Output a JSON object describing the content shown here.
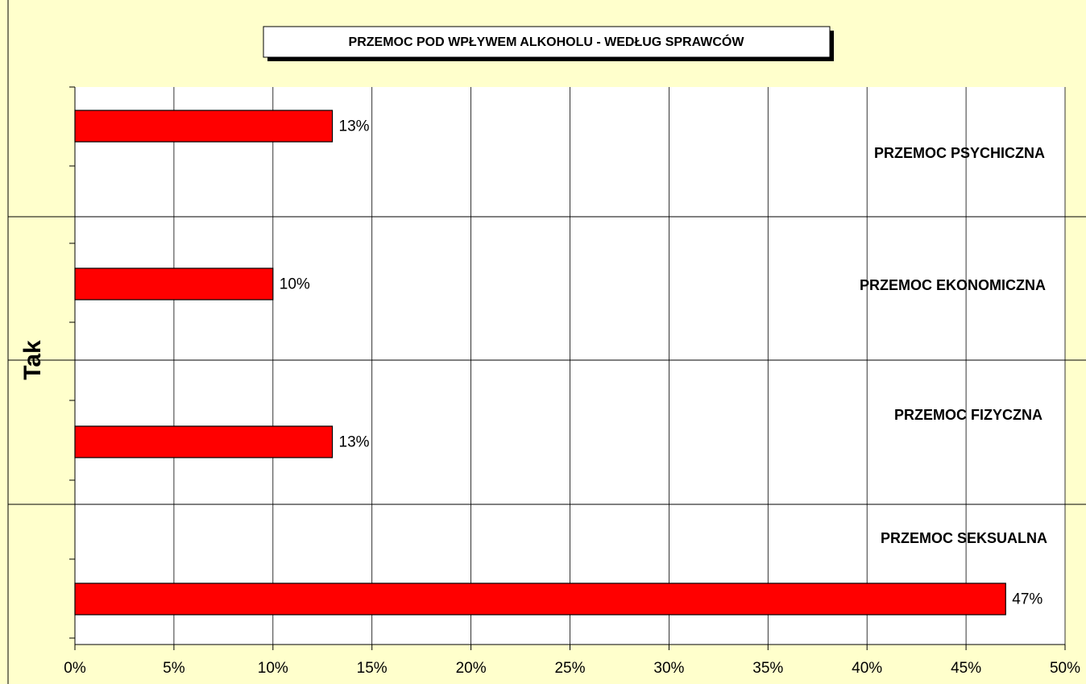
{
  "chart_data": {
    "type": "bar",
    "orientation": "horizontal",
    "title": "PRZEMOC POD WPŁYWEM ALKOHOLU - WEDŁUG SPRAWCÓW",
    "y_label": "Tak",
    "categories": [
      "PRZEMOC PSYCHICZNA",
      "PRZEMOC EKONOMICZNA",
      "PRZEMOC FIZYCZNA",
      "PRZEMOC SEKSUALNA"
    ],
    "values": [
      13,
      10,
      13,
      47
    ],
    "value_labels": [
      "13%",
      "10%",
      "13%",
      "47%"
    ],
    "color": "#ff0000",
    "xlim": [
      0,
      50
    ],
    "xticks": [
      {
        "value": 0,
        "label": "0%"
      },
      {
        "value": 5,
        "label": "5%"
      },
      {
        "value": 10,
        "label": "10%"
      },
      {
        "value": 15,
        "label": "15%"
      },
      {
        "value": 20,
        "label": "20%"
      },
      {
        "value": 25,
        "label": "25%"
      },
      {
        "value": 30,
        "label": "30%"
      },
      {
        "value": 35,
        "label": "35%"
      },
      {
        "value": 40,
        "label": "40%"
      },
      {
        "value": 45,
        "label": "45%"
      },
      {
        "value": 50,
        "label": "50%"
      }
    ],
    "grid": true
  }
}
